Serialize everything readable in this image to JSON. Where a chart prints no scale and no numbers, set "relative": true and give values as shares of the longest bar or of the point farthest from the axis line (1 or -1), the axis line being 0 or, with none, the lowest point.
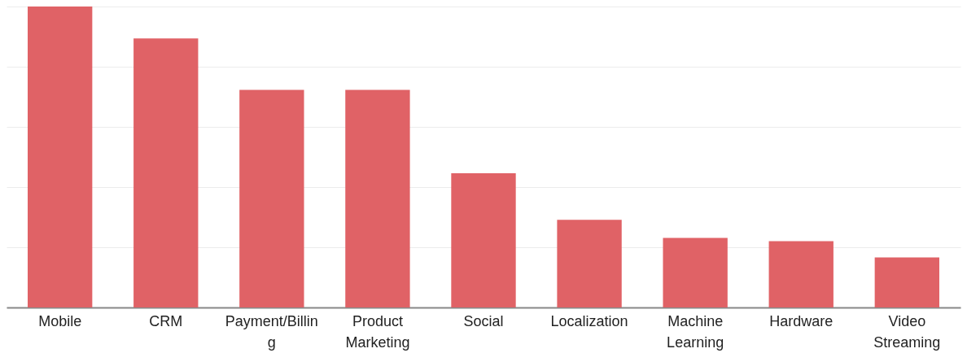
{
  "chart_data": {
    "type": "bar",
    "relative": true,
    "grid": true,
    "color": "#e06266",
    "categories": [
      "Mobile",
      "CRM",
      "Payment/Billing",
      "Product Marketing",
      "Social",
      "Localization",
      "Machine Learning",
      "Hardware",
      "Video Streaming"
    ],
    "values": [
      1,
      0.894,
      0.723,
      0.723,
      0.446,
      0.291,
      0.231,
      0.22,
      0.166
    ]
  }
}
